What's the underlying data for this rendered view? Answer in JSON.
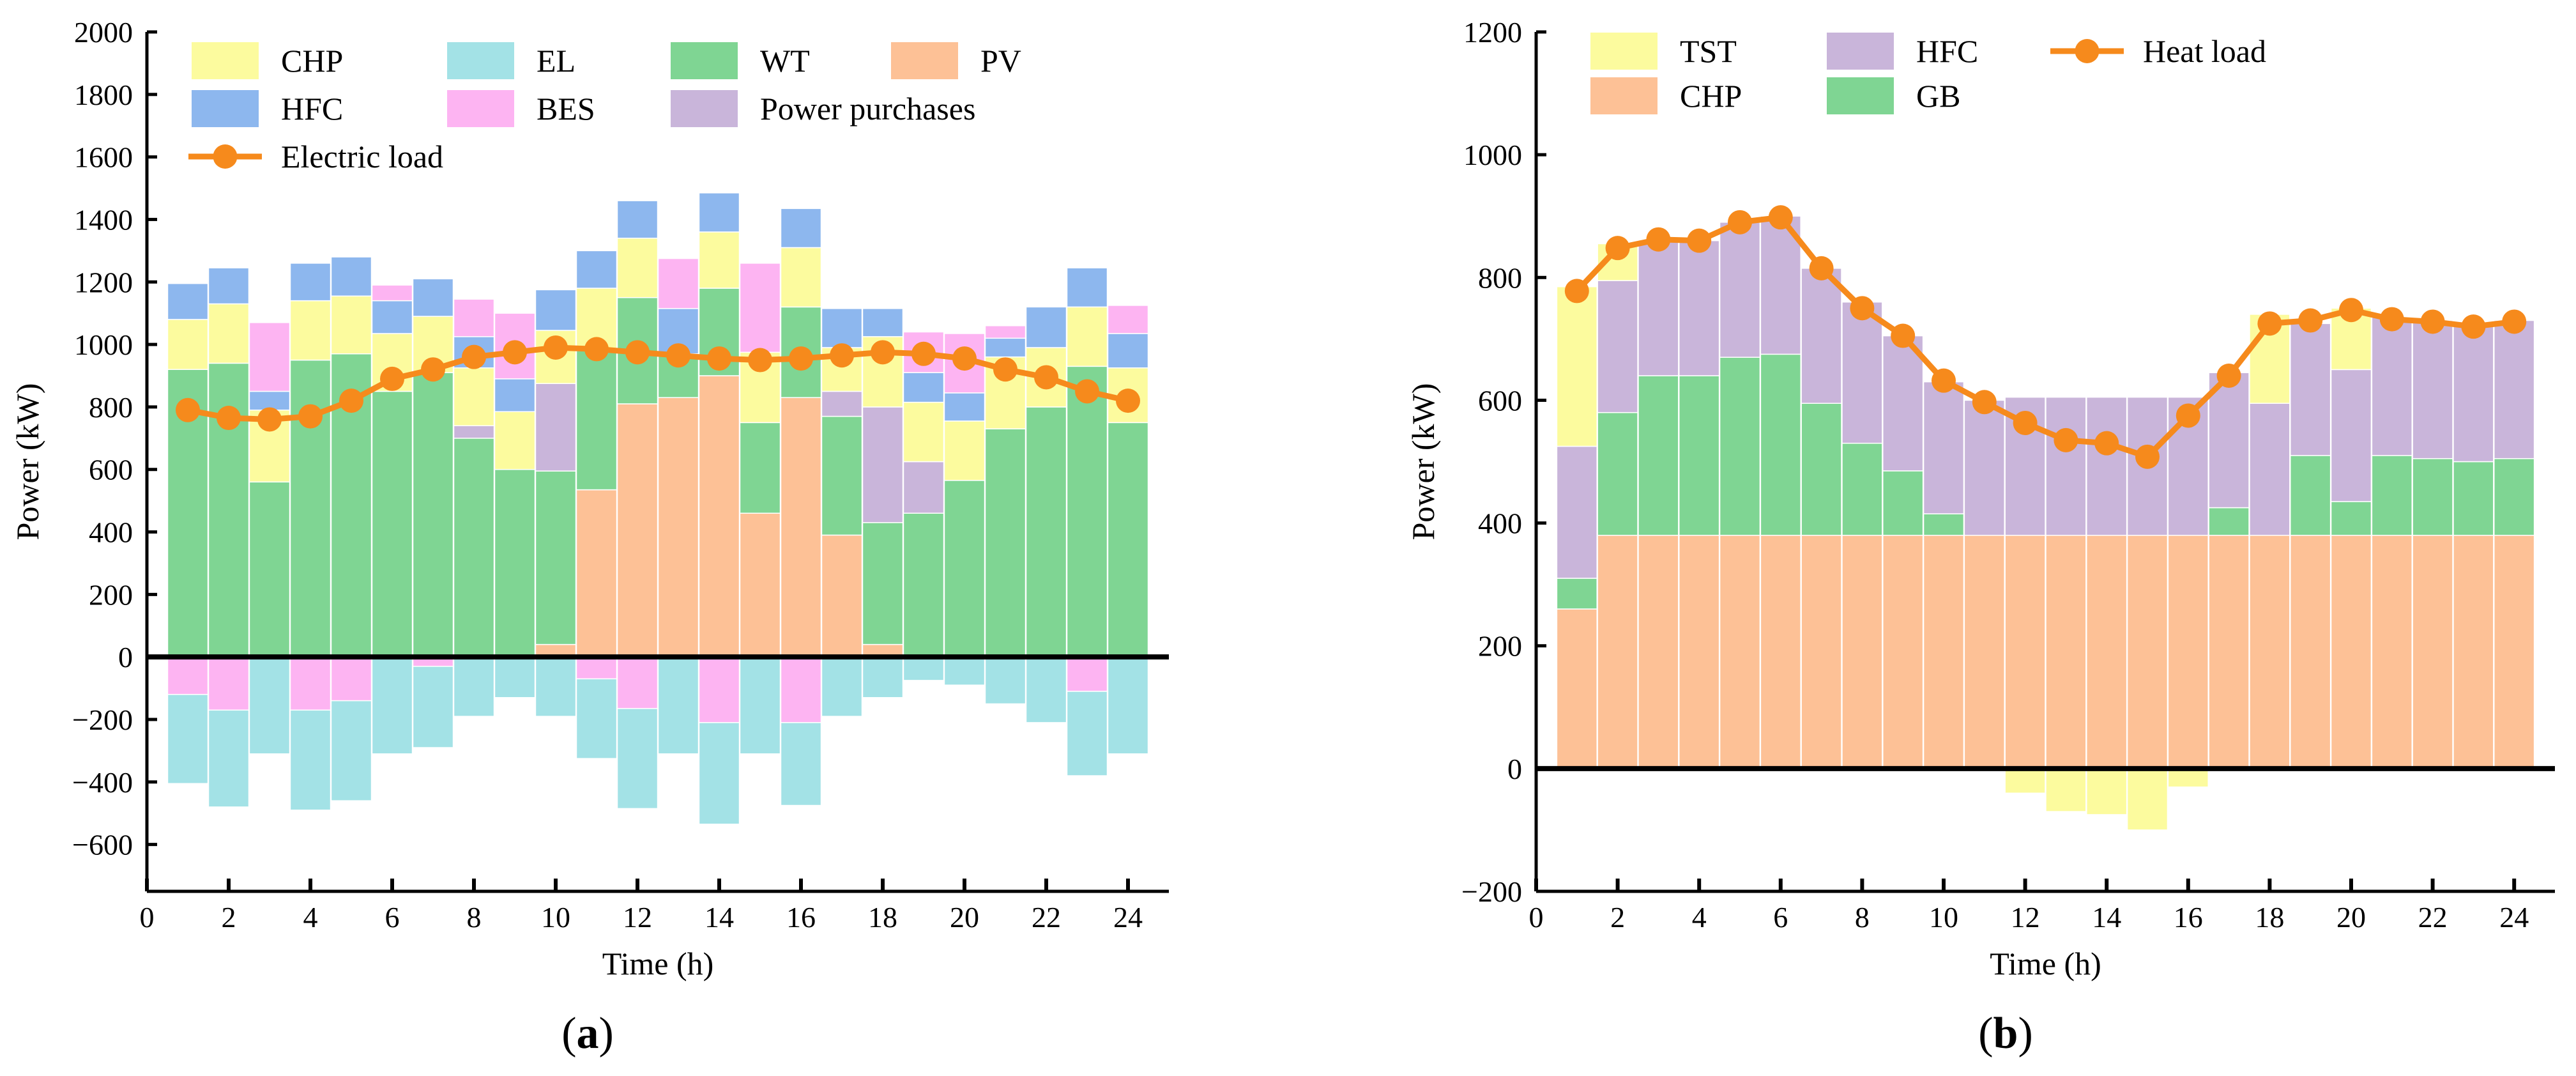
{
  "colors": {
    "CHP": "#FDC196",
    "CHP_a": "#FCFB9E",
    "EL": "#A3E2E6",
    "WT": "#7FD593",
    "PV": "#FDC196",
    "HFC_a": "#8DB7EE",
    "BES": "#FDB4F2",
    "Purchases": "#C9B5DA",
    "TST": "#FCFB9E",
    "HFC_b": "#C9B5DA",
    "GB": "#7FD593",
    "line": "#F68A1C"
  },
  "chart_data": [
    {
      "id": "a",
      "type": "stacked_bar_line",
      "sublabel_open": "(",
      "sublabel_letter": "a",
      "sublabel_close": ")",
      "xlabel": "Time (h)",
      "ylabel": "Power (kW)",
      "xlim": [
        0,
        25
      ],
      "ylim": [
        -750,
        2000
      ],
      "xticks": [
        0,
        2,
        4,
        6,
        8,
        10,
        12,
        14,
        16,
        18,
        20,
        22,
        24
      ],
      "yticks": [
        -600,
        -400,
        -200,
        0,
        200,
        400,
        600,
        800,
        1000,
        1200,
        1400,
        1600,
        1800,
        2000
      ],
      "x": [
        1,
        2,
        3,
        4,
        5,
        6,
        7,
        8,
        9,
        10,
        11,
        12,
        13,
        14,
        15,
        16,
        17,
        18,
        19,
        20,
        21,
        22,
        23,
        24
      ],
      "legend": [
        {
          "label": "CHP",
          "color_key": "CHP_a",
          "kind": "patch"
        },
        {
          "label": "EL",
          "color_key": "EL",
          "kind": "patch"
        },
        {
          "label": "WT",
          "color_key": "WT",
          "kind": "patch"
        },
        {
          "label": "PV",
          "color_key": "PV",
          "kind": "patch"
        },
        {
          "label": "HFC",
          "color_key": "HFC_a",
          "kind": "patch"
        },
        {
          "label": "BES",
          "color_key": "BES",
          "kind": "patch"
        },
        {
          "label": "Power purchases",
          "color_key": "Purchases",
          "kind": "patch"
        },
        {
          "label": "Electric load",
          "color_key": "line",
          "kind": "line"
        }
      ],
      "positive_series": [
        {
          "name": "PV",
          "color_key": "PV",
          "values": [
            0,
            0,
            0,
            0,
            0,
            0,
            0,
            0,
            0,
            40,
            535,
            810,
            830,
            900,
            460,
            830,
            390,
            40,
            0,
            0,
            0,
            0,
            0,
            0
          ]
        },
        {
          "name": "WT",
          "color_key": "WT",
          "values": [
            920,
            940,
            560,
            950,
            970,
            850,
            910,
            700,
            600,
            555,
            445,
            340,
            140,
            280,
            290,
            290,
            380,
            390,
            460,
            565,
            730,
            800,
            930,
            750
          ]
        },
        {
          "name": "Power purchases",
          "color_key": "Purchases",
          "values": [
            0,
            0,
            0,
            0,
            0,
            0,
            0,
            40,
            0,
            280,
            0,
            0,
            0,
            0,
            0,
            0,
            80,
            370,
            165,
            0,
            0,
            0,
            0,
            0
          ]
        },
        {
          "name": "CHP",
          "color_key": "CHP_a",
          "values": [
            160,
            190,
            230,
            190,
            185,
            185,
            180,
            185,
            185,
            170,
            200,
            190,
            0,
            180,
            225,
            190,
            140,
            225,
            190,
            190,
            230,
            190,
            190,
            175
          ]
        },
        {
          "name": "HFC",
          "color_key": "HFC_a",
          "values": [
            115,
            115,
            60,
            120,
            125,
            105,
            120,
            100,
            105,
            130,
            120,
            120,
            145,
            125,
            0,
            125,
            125,
            90,
            95,
            90,
            60,
            130,
            125,
            110
          ]
        },
        {
          "name": "BES",
          "color_key": "BES",
          "values": [
            0,
            0,
            220,
            0,
            0,
            50,
            0,
            120,
            210,
            0,
            0,
            0,
            160,
            0,
            285,
            0,
            0,
            0,
            130,
            190,
            40,
            0,
            0,
            90
          ]
        }
      ],
      "negative_series": [
        {
          "name": "BES",
          "color_key": "BES",
          "values": [
            -120,
            -170,
            0,
            -170,
            -140,
            0,
            -30,
            0,
            0,
            0,
            -70,
            -165,
            0,
            -210,
            0,
            -210,
            0,
            0,
            0,
            0,
            0,
            0,
            -110,
            0
          ]
        },
        {
          "name": "EL",
          "color_key": "EL",
          "values": [
            -285,
            -310,
            -310,
            -320,
            -320,
            -310,
            -260,
            -190,
            -130,
            -190,
            -255,
            -320,
            -310,
            -325,
            -310,
            -265,
            -190,
            -130,
            -75,
            -90,
            -150,
            -210,
            -270,
            -310
          ]
        }
      ],
      "line": {
        "name": "Electric load",
        "values": [
          790,
          765,
          760,
          770,
          820,
          890,
          920,
          960,
          975,
          990,
          985,
          975,
          965,
          955,
          950,
          955,
          965,
          975,
          970,
          955,
          920,
          895,
          850,
          820
        ]
      }
    },
    {
      "id": "b",
      "type": "stacked_bar_line",
      "sublabel_open": "(",
      "sublabel_letter": "b",
      "sublabel_close": ")",
      "xlabel": "Time (h)",
      "ylabel": "Power (kW)",
      "xlim": [
        0,
        25
      ],
      "ylim": [
        -200,
        1200
      ],
      "xticks": [
        0,
        2,
        4,
        6,
        8,
        10,
        12,
        14,
        16,
        18,
        20,
        22,
        24
      ],
      "yticks": [
        -200,
        0,
        200,
        400,
        600,
        800,
        1000,
        1200
      ],
      "x": [
        1,
        2,
        3,
        4,
        5,
        6,
        7,
        8,
        9,
        10,
        11,
        12,
        13,
        14,
        15,
        16,
        17,
        18,
        19,
        20,
        21,
        22,
        23,
        24
      ],
      "legend": [
        {
          "label": "TST",
          "color_key": "TST",
          "kind": "patch"
        },
        {
          "label": "HFC",
          "color_key": "HFC_b",
          "kind": "patch"
        },
        {
          "label": "Heat load",
          "color_key": "line",
          "kind": "line"
        },
        {
          "label": "CHP",
          "color_key": "CHP",
          "kind": "patch"
        },
        {
          "label": "GB",
          "color_key": "GB",
          "kind": "patch"
        }
      ],
      "positive_series": [
        {
          "name": "CHP",
          "color_key": "CHP",
          "values": [
            260,
            380,
            380,
            380,
            380,
            380,
            380,
            380,
            380,
            380,
            380,
            380,
            380,
            380,
            380,
            380,
            380,
            380,
            380,
            380,
            380,
            380,
            380,
            380
          ]
        },
        {
          "name": "GB",
          "color_key": "GB",
          "values": [
            50,
            200,
            260,
            260,
            290,
            295,
            215,
            150,
            105,
            35,
            0,
            0,
            0,
            0,
            0,
            0,
            45,
            0,
            130,
            55,
            130,
            125,
            120,
            125
          ]
        },
        {
          "name": "HFC",
          "color_key": "HFC_b",
          "values": [
            215,
            215,
            220,
            220,
            220,
            225,
            220,
            230,
            220,
            215,
            220,
            225,
            225,
            225,
            225,
            225,
            220,
            215,
            215,
            215,
            225,
            225,
            220,
            225
          ]
        },
        {
          "name": "TST",
          "color_key": "TST",
          "values": [
            260,
            60,
            0,
            0,
            0,
            0,
            0,
            0,
            0,
            0,
            0,
            0,
            0,
            0,
            0,
            0,
            0,
            145,
            0,
            100,
            0,
            0,
            0,
            0
          ]
        }
      ],
      "negative_series": [
        {
          "name": "TST",
          "color_key": "TST",
          "values": [
            0,
            0,
            0,
            0,
            0,
            0,
            0,
            0,
            0,
            0,
            0,
            -40,
            -70,
            -75,
            -100,
            -30,
            0,
            0,
            0,
            0,
            0,
            0,
            0,
            0
          ]
        }
      ],
      "line": {
        "name": "Heat load",
        "values": [
          778,
          848,
          862,
          860,
          890,
          898,
          815,
          750,
          705,
          632,
          597,
          563,
          535,
          530,
          508,
          575,
          640,
          725,
          730,
          747,
          732,
          728,
          720,
          728
        ]
      }
    }
  ]
}
